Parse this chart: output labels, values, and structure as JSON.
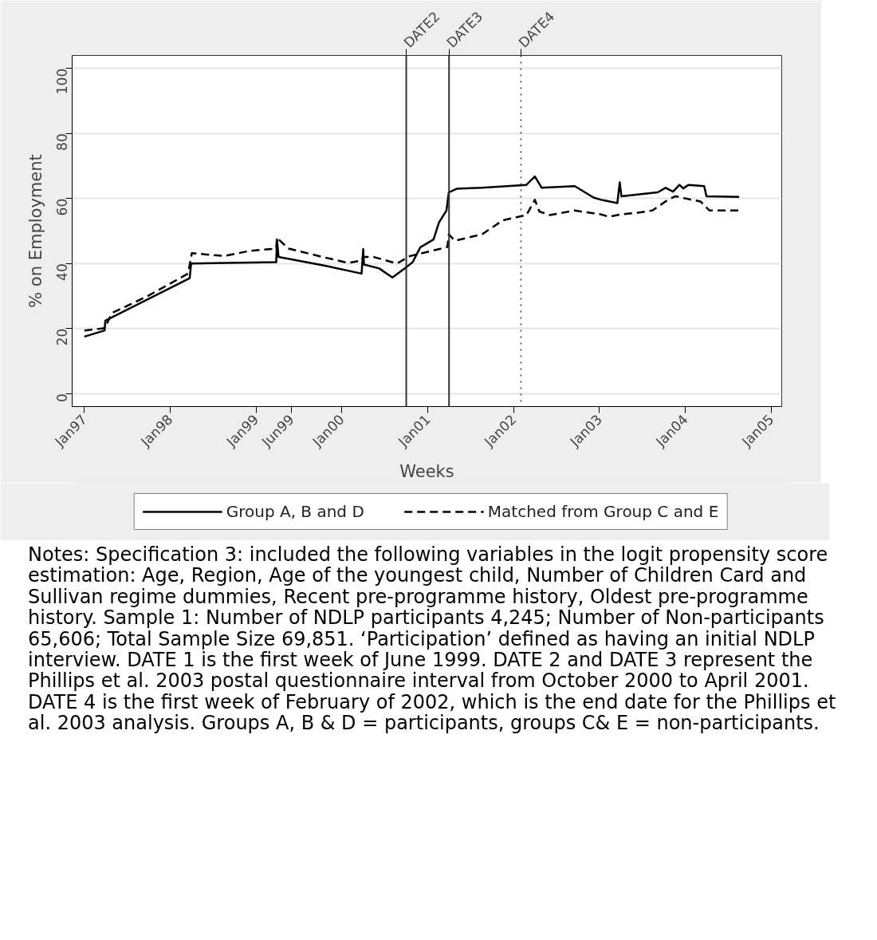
{
  "chart_data": {
    "type": "line",
    "xlabel": "Weeks",
    "ylabel": "% on Employment",
    "xlim": [
      "1996-11-10",
      "2005-02-14"
    ],
    "ylim": [
      -4,
      104
    ],
    "xticks": [
      {
        "value": "1997-01-01",
        "label": "Jan97"
      },
      {
        "value": "1998-01-01",
        "label": "Jan98"
      },
      {
        "value": "1999-01-01",
        "label": "Jan99"
      },
      {
        "value": "1999-06-01",
        "label": "Jun99"
      },
      {
        "value": "2000-01-01",
        "label": "Jan00"
      },
      {
        "value": "2001-01-01",
        "label": "Jan01"
      },
      {
        "value": "2002-01-01",
        "label": "Jan02"
      },
      {
        "value": "2003-01-01",
        "label": "Jan03"
      },
      {
        "value": "2004-01-01",
        "label": "Jan04"
      },
      {
        "value": "2005-01-01",
        "label": "Jan05"
      }
    ],
    "yticks": [
      0,
      20,
      40,
      60,
      80,
      100
    ],
    "grid": "y",
    "legend": "bottom",
    "series": [
      {
        "name": "Group A, B and D",
        "color": "#000000",
        "line_style": "solid",
        "x": [
          "1997-01-01",
          "1997-03-28",
          "1997-03-31",
          "1998-03-25",
          "1998-03-31",
          "1999-03-28",
          "1999-03-31",
          "1999-04-07",
          "1999-10-22",
          "2000-03-25",
          "2000-04-01",
          "2000-04-04",
          "2000-06-08",
          "2000-08-03",
          "2000-09-25",
          "2000-10-28",
          "2000-11-30",
          "2001-01-25",
          "2001-02-17",
          "2001-03-21",
          "2001-03-31",
          "2001-05-03",
          "2001-08-20",
          "2002-02-24",
          "2002-04-01",
          "2002-04-30",
          "2002-09-18",
          "2002-12-06",
          "2003-01-08",
          "2003-03-18",
          "2003-03-28",
          "2003-04-04",
          "2003-09-06",
          "2003-10-09",
          "2003-11-10",
          "2003-12-07",
          "2003-12-23",
          "2004-01-15",
          "2004-03-21",
          "2004-03-31",
          "2004-08-17"
        ],
        "values": [
          17.5,
          19.4,
          22.4,
          35.5,
          40,
          40.4,
          47.4,
          42,
          39.3,
          36.9,
          44.4,
          39.7,
          38.5,
          35.7,
          38.5,
          40.4,
          45,
          47.4,
          52.6,
          56.3,
          61.9,
          63,
          63.3,
          64.2,
          66.8,
          63.3,
          63.8,
          60.3,
          59.6,
          58.6,
          65,
          60.7,
          61.9,
          63.3,
          62.1,
          64.2,
          63.1,
          64.2,
          63.8,
          60.7,
          60.5
        ]
      },
      {
        "name": "Matched from Group C and E",
        "color": "#000000",
        "line_style": "dashed",
        "x": [
          "1997-01-01",
          "1997-03-28",
          "1997-04-29",
          "1997-09-25",
          "1998-03-18",
          "1998-04-03",
          "1998-08-19",
          "1998-12-06",
          "1999-03-28",
          "1999-03-31",
          "1999-05-19",
          "1999-10-12",
          "2000-01-28",
          "2000-03-25",
          "2000-04-01",
          "2000-05-16",
          "2000-08-22",
          "2000-10-17",
          "2001-02-27",
          "2001-03-25",
          "2001-03-31",
          "2001-04-26",
          "2001-08-20",
          "2001-11-16",
          "2002-02-24",
          "2002-04-01",
          "2002-04-20",
          "2002-06-03",
          "2002-09-18",
          "2003-01-08",
          "2003-02-10",
          "2003-04-01",
          "2003-06-09",
          "2003-08-14",
          "2003-10-19",
          "2003-11-20",
          "2004-01-15",
          "2004-03-05",
          "2004-04-13",
          "2004-08-17"
        ],
        "values": [
          19.4,
          20.1,
          24.8,
          29.9,
          36.9,
          43.2,
          42.3,
          43.9,
          44.6,
          47.9,
          44.6,
          42,
          40.2,
          40.9,
          42,
          42,
          40,
          42.3,
          44.6,
          45.1,
          49,
          47,
          49,
          53.3,
          54.9,
          59.6,
          56,
          54.9,
          56.3,
          55.1,
          54.4,
          55.1,
          55.6,
          56.3,
          59.6,
          60.7,
          59.8,
          59.1,
          56.3,
          56.3
        ]
      }
    ],
    "ref_lines": [
      {
        "axis": "x",
        "value": "2000-10-01",
        "label": "DATE2",
        "color": "#333333",
        "line_style": "solid"
      },
      {
        "axis": "x",
        "value": "2001-04-01",
        "label": "DATE3",
        "color": "#333333",
        "line_style": "solid"
      },
      {
        "axis": "x",
        "value": "2002-02-01",
        "label": "DATE4",
        "color": "#333333",
        "line_style": "dotted"
      }
    ],
    "annotations": [
      "Notes: Specification 3: included the following variables in the logit propensity score estimation: Age, Region, Age of the youngest child, Number of Children Card and Sullivan regime dummies, Recent pre-programme history, Oldest pre-programme history. Sample 1: Number of NDLP participants 4,245; Number of Non-participants 65,606; Total Sample Size 69,851. ‘Participation’ defined as having an initial NDLP interview. DATE 1 is the first week of June 1999. DATE 2 and DATE 3 represent the Phillips et al. 2003 postal questionnaire interval from October 2000 to April 2001. DATE 4 is the first week of February of 2002, which is the end date for the Phillips et al. 2003 analysis. Groups A, B & D = participants, groups C& E = non-participants."
    ]
  }
}
